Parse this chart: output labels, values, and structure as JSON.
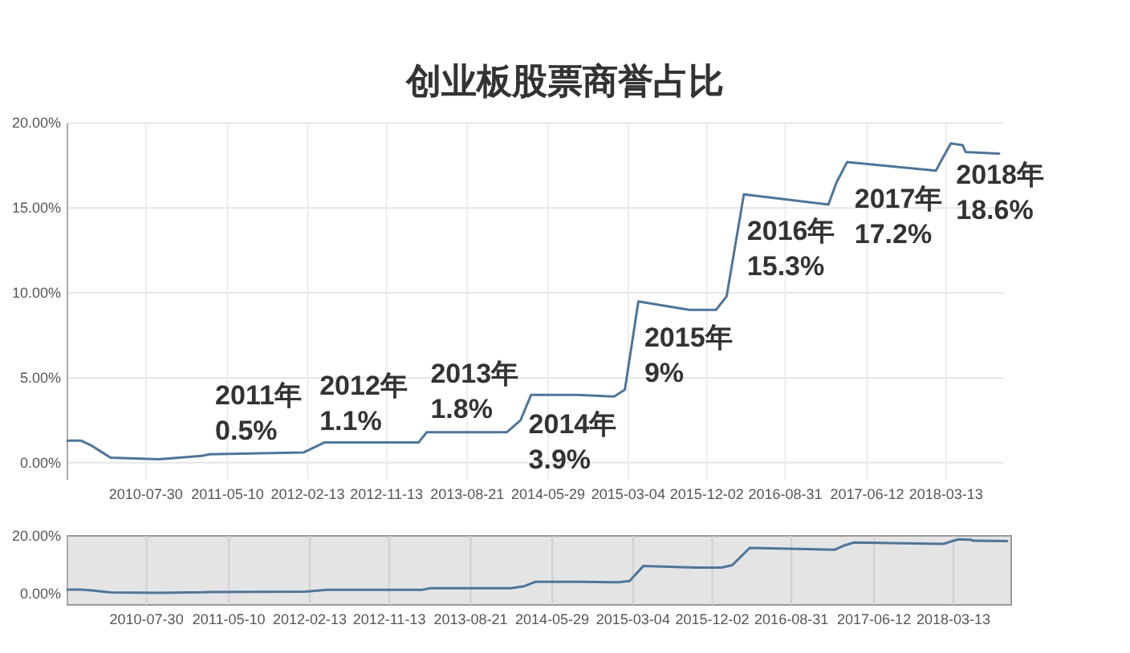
{
  "chart_data": [
    {
      "type": "line",
      "title": "创业板股票商誉占比",
      "x": [
        "2009-10-30",
        "2009-12-17",
        "2010-01-23",
        "2010-03-01",
        "2010-03-29",
        "2010-09-13",
        "2011-02-09",
        "2011-03-09",
        "2012-01-29",
        "2012-04-12",
        "2013-03-05",
        "2013-04-02",
        "2014-01-06",
        "2014-02-22",
        "2014-03-31",
        "2014-09-06",
        "2015-01-14",
        "2015-02-20",
        "2015-04-08",
        "2015-10-02",
        "2016-01-03",
        "2016-02-09",
        "2016-04-09",
        "2017-01-28",
        "2017-02-25",
        "2017-04-03",
        "2018-02-06",
        "2018-02-25",
        "2018-03-30",
        "2018-05-10",
        "2018-05-20",
        "2018-09-14"
      ],
      "series": [
        {
          "color": "#4f7599",
          "values": [
            1.3,
            1.3,
            1.0,
            0.6,
            0.3,
            0.2,
            0.4,
            0.5,
            0.6,
            1.2,
            1.2,
            1.8,
            1.8,
            2.5,
            4.0,
            4.0,
            3.9,
            4.3,
            9.5,
            9.0,
            9.0,
            9.8,
            15.8,
            15.2,
            16.5,
            17.7,
            17.2,
            17.8,
            18.8,
            18.7,
            18.3,
            18.2
          ]
        }
      ],
      "xlim": [
        "2009-10-30",
        "2018-09-28"
      ],
      "xticks": [
        "2010-07-30",
        "2011-05-10",
        "2012-02-13",
        "2012-11-13",
        "2013-08-21",
        "2014-05-29",
        "2015-03-04",
        "2015-12-02",
        "2016-08-31",
        "2017-06-12",
        "2018-03-13"
      ],
      "ylim": [
        -1,
        20
      ],
      "yticks": [
        {
          "value": 0,
          "label": "0.00%"
        },
        {
          "value": 5,
          "label": "5.00%"
        },
        {
          "value": 10,
          "label": "10.00%"
        },
        {
          "value": 15,
          "label": "15.00%"
        },
        {
          "value": 20,
          "label": "20.00%"
        }
      ],
      "grid": true,
      "annotations": [
        {
          "text": "2011年\n0.5%",
          "x": "2011-03-28",
          "y": 0.5
        },
        {
          "text": "2012年\n1.1%",
          "x": "2012-03-25",
          "y": 1.1
        },
        {
          "text": "2013年\n1.8%",
          "x": "2013-04-15",
          "y": 1.8
        },
        {
          "text": "2014年\n3.9%",
          "x": "2014-03-22",
          "y": 3.9
        },
        {
          "text": "2015年\n9%",
          "x": "2015-04-29",
          "y": 9
        },
        {
          "text": "2016年\n15.3%",
          "x": "2016-04-20",
          "y": 15.3
        },
        {
          "text": "2017年\n17.2%",
          "x": "2017-04-29",
          "y": 17.2
        },
        {
          "text": "2018年\n18.6%",
          "x": "2018-04-17",
          "y": 18.6
        }
      ]
    },
    {
      "type": "line",
      "x": [
        "2009-10-30",
        "2009-12-17",
        "2010-01-23",
        "2010-03-01",
        "2010-03-29",
        "2010-09-13",
        "2011-02-09",
        "2011-03-09",
        "2012-01-29",
        "2012-04-12",
        "2013-03-05",
        "2013-04-02",
        "2014-01-06",
        "2014-02-22",
        "2014-03-31",
        "2014-09-06",
        "2015-01-14",
        "2015-02-20",
        "2015-04-08",
        "2015-10-02",
        "2016-01-03",
        "2016-02-09",
        "2016-04-09",
        "2017-01-28",
        "2017-02-25",
        "2017-04-03",
        "2018-02-06",
        "2018-02-25",
        "2018-03-30",
        "2018-05-10",
        "2018-05-20",
        "2018-09-14"
      ],
      "series": [
        {
          "color": "#4f7599",
          "values": [
            1.3,
            1.3,
            1.0,
            0.6,
            0.3,
            0.2,
            0.4,
            0.5,
            0.6,
            1.2,
            1.2,
            1.8,
            1.8,
            2.5,
            4.0,
            4.0,
            3.9,
            4.3,
            9.5,
            9.0,
            9.0,
            9.8,
            15.8,
            15.2,
            16.5,
            17.7,
            17.2,
            17.8,
            18.8,
            18.7,
            18.3,
            18.2
          ]
        }
      ],
      "xlim": [
        "2009-10-30",
        "2018-09-28"
      ],
      "xticks": [
        "2010-07-30",
        "2011-05-10",
        "2012-02-13",
        "2012-11-13",
        "2013-08-21",
        "2014-05-29",
        "2015-03-04",
        "2015-12-02",
        "2016-08-31",
        "2017-06-12",
        "2018-03-13"
      ],
      "ylim": [
        -4,
        20
      ],
      "yticks": [
        {
          "value": 0,
          "label": "0.00%"
        },
        {
          "value": 20,
          "label": "20.00%"
        }
      ],
      "grid": "x"
    }
  ]
}
